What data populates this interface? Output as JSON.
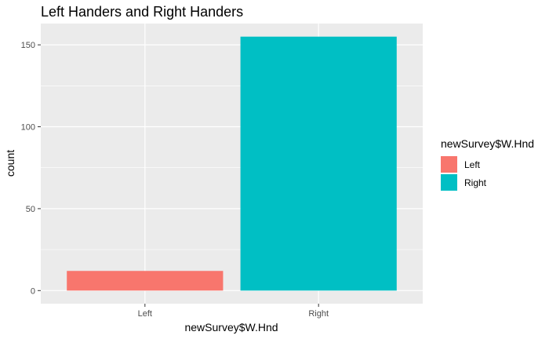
{
  "chart_data": {
    "type": "bar",
    "title": "Left Handers and Right Handers",
    "xlabel": "newSurvey$W.Hnd",
    "ylabel": "count",
    "categories": [
      "Left",
      "Right"
    ],
    "values": [
      12,
      155
    ],
    "colors": [
      "#F8766D",
      "#00BFC4"
    ],
    "ylim": [
      -8,
      163
    ],
    "yticks": [
      0,
      50,
      100,
      150
    ],
    "grid": true,
    "legend": {
      "title": "newSurvey$W.Hnd",
      "placement": "right",
      "items": [
        {
          "label": "Left",
          "color": "#F8766D"
        },
        {
          "label": "Right",
          "color": "#00BFC4"
        }
      ]
    }
  }
}
